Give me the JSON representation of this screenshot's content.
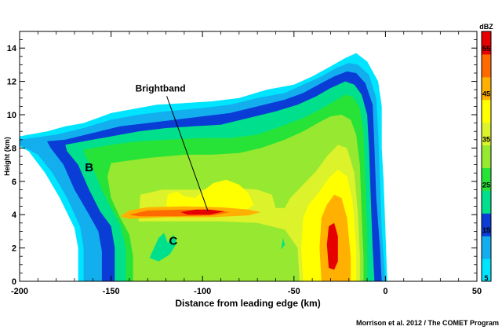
{
  "chart_data": {
    "type": "heatmap",
    "xlabel": "Distance from leading edge (km)",
    "ylabel": "Height (km)",
    "xlim": [
      -200,
      50
    ],
    "ylim": [
      0,
      15
    ],
    "xticks": [
      -200,
      -150,
      -100,
      -50,
      0,
      50
    ],
    "yticks": [
      0,
      2,
      4,
      6,
      8,
      10,
      12,
      14
    ],
    "colorbar": {
      "title": "dBZ",
      "range": [
        5,
        60
      ],
      "ticks": [
        5,
        15,
        25,
        35,
        45,
        55
      ],
      "levels": [
        {
          "from": 5,
          "to": 10,
          "color": "#00e5ff"
        },
        {
          "from": 10,
          "to": 15,
          "color": "#12aeee"
        },
        {
          "from": 15,
          "to": 20,
          "color": "#0a3cd6"
        },
        {
          "from": 20,
          "to": 25,
          "color": "#00e08c"
        },
        {
          "from": 25,
          "to": 30,
          "color": "#27e337"
        },
        {
          "from": 30,
          "to": 35,
          "color": "#96e830"
        },
        {
          "from": 35,
          "to": 40,
          "color": "#dcf22a"
        },
        {
          "from": 40,
          "to": 45,
          "color": "#ffff00"
        },
        {
          "from": 45,
          "to": 50,
          "color": "#ffb000"
        },
        {
          "from": 50,
          "to": 55,
          "color": "#ff6a00"
        },
        {
          "from": 55,
          "to": 60,
          "color": "#e60000"
        }
      ]
    },
    "annotations": [
      {
        "text": "Brightband",
        "x": -123,
        "y": 11.4,
        "arrow_to": [
          -97,
          4.2
        ]
      },
      {
        "text": "B",
        "x": -162,
        "y": 6.6
      },
      {
        "text": "C",
        "x": -116,
        "y": 2.2
      }
    ],
    "regions": [
      {
        "dbz_min": 5,
        "points": [
          [
            -200,
            8.7
          ],
          [
            -195,
            8.8
          ],
          [
            -185,
            9.0
          ],
          [
            -175,
            9.3
          ],
          [
            -165,
            9.5
          ],
          [
            -150,
            10.1
          ],
          [
            -140,
            10.3
          ],
          [
            -125,
            10.6
          ],
          [
            -110,
            10.7
          ],
          [
            -95,
            10.8
          ],
          [
            -80,
            11.0
          ],
          [
            -65,
            11.5
          ],
          [
            -50,
            11.8
          ],
          [
            -40,
            12.3
          ],
          [
            -30,
            12.9
          ],
          [
            -22,
            13.4
          ],
          [
            -16,
            13.7
          ],
          [
            -10,
            13.2
          ],
          [
            -4,
            12.0
          ],
          [
            -2,
            10.5
          ],
          [
            -2,
            8.0
          ],
          [
            -1,
            6.0
          ],
          [
            0,
            3.0
          ],
          [
            1,
            0
          ],
          [
            -168,
            0
          ],
          [
            -168,
            2
          ],
          [
            -170,
            3.2
          ],
          [
            -178,
            5.0
          ],
          [
            -186,
            6.5
          ],
          [
            -195,
            7.8
          ],
          [
            -200,
            8.1
          ]
        ]
      },
      {
        "dbz_min": 10,
        "points": [
          [
            -200,
            8.5
          ],
          [
            -190,
            8.65
          ],
          [
            -180,
            8.8
          ],
          [
            -165,
            9.2
          ],
          [
            -150,
            9.7
          ],
          [
            -135,
            10.0
          ],
          [
            -120,
            10.2
          ],
          [
            -100,
            10.4
          ],
          [
            -85,
            10.6
          ],
          [
            -70,
            11.0
          ],
          [
            -55,
            11.3
          ],
          [
            -45,
            11.8
          ],
          [
            -35,
            12.3
          ],
          [
            -27,
            12.8
          ],
          [
            -20,
            13.1
          ],
          [
            -15,
            13.0
          ],
          [
            -9,
            12.4
          ],
          [
            -5,
            11.0
          ],
          [
            -4,
            9.0
          ],
          [
            -3,
            6.0
          ],
          [
            -2,
            3.0
          ],
          [
            0,
            0
          ],
          [
            -165,
            0
          ],
          [
            -165,
            2.0
          ],
          [
            -167,
            3.3
          ],
          [
            -174,
            5.0
          ],
          [
            -182,
            6.5
          ],
          [
            -190,
            7.6
          ],
          [
            -200,
            8.2
          ]
        ]
      },
      {
        "dbz_min": 15,
        "points": [
          [
            -185,
            8.4
          ],
          [
            -175,
            8.5
          ],
          [
            -160,
            8.9
          ],
          [
            -145,
            9.3
          ],
          [
            -130,
            9.5
          ],
          [
            -115,
            9.7
          ],
          [
            -100,
            9.9
          ],
          [
            -85,
            10.1
          ],
          [
            -70,
            10.5
          ],
          [
            -55,
            10.9
          ],
          [
            -45,
            11.3
          ],
          [
            -35,
            11.9
          ],
          [
            -28,
            12.3
          ],
          [
            -21,
            12.6
          ],
          [
            -16,
            12.5
          ],
          [
            -11,
            11.9
          ],
          [
            -7,
            10.6
          ],
          [
            -6,
            8.0
          ],
          [
            -5,
            5.0
          ],
          [
            -3,
            2.0
          ],
          [
            -2,
            0
          ],
          [
            -155,
            0
          ],
          [
            -155,
            1.8
          ],
          [
            -157,
            3.0
          ],
          [
            -162,
            4.0
          ],
          [
            -170,
            5.5
          ],
          [
            -176,
            7.0
          ],
          [
            -183,
            8.0
          ]
        ]
      },
      {
        "dbz_min": 20,
        "points": [
          [
            -175,
            8.2
          ],
          [
            -165,
            8.4
          ],
          [
            -150,
            8.7
          ],
          [
            -135,
            9.0
          ],
          [
            -120,
            9.2
          ],
          [
            -105,
            9.3
          ],
          [
            -90,
            9.4
          ],
          [
            -75,
            9.8
          ],
          [
            -60,
            10.2
          ],
          [
            -48,
            10.6
          ],
          [
            -38,
            11.1
          ],
          [
            -30,
            11.6
          ],
          [
            -22,
            12.0
          ],
          [
            -17,
            11.8
          ],
          [
            -13,
            11.2
          ],
          [
            -10,
            10.0
          ],
          [
            -9,
            8.0
          ],
          [
            -8,
            5.0
          ],
          [
            -7,
            2.0
          ],
          [
            -6,
            0
          ],
          [
            -148,
            0
          ],
          [
            -148,
            2.0
          ],
          [
            -150,
            3.3
          ],
          [
            -156,
            4.2
          ],
          [
            -162,
            5.5
          ],
          [
            -168,
            7.0
          ],
          [
            -174,
            7.8
          ]
        ]
      },
      {
        "dbz_min": 25,
        "points": [
          [
            -165,
            7.9
          ],
          [
            -150,
            8.2
          ],
          [
            -135,
            8.4
          ],
          [
            -120,
            8.5
          ],
          [
            -100,
            8.6
          ],
          [
            -85,
            8.6
          ],
          [
            -70,
            8.8
          ],
          [
            -57,
            9.3
          ],
          [
            -45,
            9.8
          ],
          [
            -36,
            10.3
          ],
          [
            -28,
            10.8
          ],
          [
            -22,
            11.2
          ],
          [
            -18,
            11.1
          ],
          [
            -14,
            10.4
          ],
          [
            -12,
            9.0
          ],
          [
            -11,
            6.0
          ],
          [
            -10,
            3.0
          ],
          [
            -10,
            0
          ],
          [
            -142,
            0
          ],
          [
            -142,
            2.0
          ],
          [
            -145,
            3.4
          ],
          [
            -150,
            4.4
          ],
          [
            -155,
            5.5
          ],
          [
            -160,
            6.8
          ],
          [
            -164,
            7.5
          ]
        ]
      },
      {
        "dbz_min": 30,
        "points": [
          [
            -150,
            7.1
          ],
          [
            -130,
            7.4
          ],
          [
            -110,
            7.6
          ],
          [
            -95,
            7.6
          ],
          [
            -80,
            7.7
          ],
          [
            -68,
            8.0
          ],
          [
            -55,
            8.5
          ],
          [
            -45,
            9.0
          ],
          [
            -37,
            9.5
          ],
          [
            -30,
            9.9
          ],
          [
            -24,
            10.0
          ],
          [
            -19,
            9.7
          ],
          [
            -16,
            8.8
          ],
          [
            -14,
            7.0
          ],
          [
            -13,
            4.0
          ],
          [
            -12,
            1.5
          ],
          [
            -12,
            0
          ],
          [
            -138,
            0
          ],
          [
            -138,
            1.5
          ],
          [
            -140,
            2.8
          ],
          [
            -145,
            3.8
          ],
          [
            -150,
            5.0
          ],
          [
            -152,
            6.3
          ]
        ]
      },
      {
        "dbz_min": 35,
        "points": [
          [
            -134,
            5.2
          ],
          [
            -122,
            5.5
          ],
          [
            -108,
            5.5
          ],
          [
            -95,
            5.5
          ],
          [
            -82,
            5.6
          ],
          [
            -70,
            5.5
          ],
          [
            -62,
            5.2
          ],
          [
            -60,
            4.4
          ],
          [
            -55,
            4.4
          ],
          [
            -52,
            5.0
          ],
          [
            -45,
            5.8
          ],
          [
            -38,
            6.6
          ],
          [
            -32,
            7.5
          ],
          [
            -26,
            8.2
          ],
          [
            -21,
            8.0
          ],
          [
            -17,
            6.5
          ],
          [
            -15,
            4.0
          ],
          [
            -14,
            1.5
          ],
          [
            -14,
            0
          ],
          [
            -47,
            0
          ],
          [
            -48,
            2.0
          ],
          [
            -55,
            3.1
          ],
          [
            -70,
            3.5
          ],
          [
            -90,
            3.6
          ],
          [
            -110,
            3.6
          ],
          [
            -125,
            3.6
          ],
          [
            -135,
            3.6
          ]
        ]
      },
      {
        "dbz_min": 40,
        "points": [
          [
            -120,
            4.4
          ],
          [
            -119,
            5.2
          ],
          [
            -114,
            5.4
          ],
          [
            -110,
            5.1
          ],
          [
            -104,
            5.0
          ],
          [
            -100,
            5.4
          ],
          [
            -94,
            5.9
          ],
          [
            -87,
            6.1
          ],
          [
            -80,
            5.8
          ],
          [
            -75,
            5.3
          ],
          [
            -72,
            4.6
          ],
          [
            -77,
            4.2
          ],
          [
            -100,
            4.25
          ],
          [
            -120,
            4.2
          ]
        ]
      },
      {
        "dbz_min": 40,
        "points": [
          [
            -45,
            0
          ],
          [
            -46,
            2.0
          ],
          [
            -45,
            3.8
          ],
          [
            -42,
            4.6
          ],
          [
            -36,
            5.4
          ],
          [
            -31,
            6.2
          ],
          [
            -26,
            6.7
          ],
          [
            -21,
            6.3
          ],
          [
            -18,
            4.8
          ],
          [
            -16,
            2.0
          ],
          [
            -16,
            0
          ]
        ]
      },
      {
        "dbz_min": 45,
        "points": [
          [
            -145,
            3.9
          ],
          [
            -140,
            4.25
          ],
          [
            -130,
            4.45
          ],
          [
            -110,
            4.5
          ],
          [
            -90,
            4.45
          ],
          [
            -75,
            4.3
          ],
          [
            -68,
            4.15
          ],
          [
            -75,
            3.95
          ],
          [
            -95,
            3.85
          ],
          [
            -120,
            3.85
          ],
          [
            -140,
            3.75
          ]
        ]
      },
      {
        "dbz_min": 45,
        "points": [
          [
            -35,
            0
          ],
          [
            -36,
            2.0
          ],
          [
            -35,
            3.8
          ],
          [
            -32,
            4.6
          ],
          [
            -28,
            5.2
          ],
          [
            -24,
            5.0
          ],
          [
            -21,
            3.8
          ],
          [
            -19,
            1.5
          ],
          [
            -19,
            0
          ]
        ]
      },
      {
        "dbz_min": 50,
        "points": [
          [
            -140,
            4.0
          ],
          [
            -130,
            4.25
          ],
          [
            -110,
            4.3
          ],
          [
            -95,
            4.25
          ],
          [
            -85,
            4.15
          ],
          [
            -95,
            3.95
          ],
          [
            -115,
            3.9
          ],
          [
            -135,
            3.9
          ]
        ]
      },
      {
        "dbz_min": 55,
        "points": [
          [
            -112,
            4.15
          ],
          [
            -104,
            4.3
          ],
          [
            -96,
            4.3
          ],
          [
            -88,
            4.2
          ],
          [
            -96,
            4.0
          ],
          [
            -108,
            4.0
          ]
        ]
      },
      {
        "dbz_min": 55,
        "points": [
          [
            -31,
            0.8
          ],
          [
            -32,
            2.2
          ],
          [
            -31,
            3.3
          ],
          [
            -28,
            3.5
          ],
          [
            -26,
            2.7
          ],
          [
            -26,
            1.2
          ],
          [
            -28,
            0.7
          ]
        ]
      },
      {
        "dbz_min": 20,
        "points": [
          [
            -129,
            1.4
          ],
          [
            -124,
            2.6
          ],
          [
            -121,
            2.9
          ],
          [
            -119,
            2.3
          ],
          [
            -116,
            2.8
          ],
          [
            -114,
            2.3
          ],
          [
            -118,
            1.6
          ],
          [
            -124,
            1.2
          ]
        ]
      },
      {
        "dbz_min": 20,
        "points": [
          [
            -57,
            1.9
          ],
          [
            -56,
            2.6
          ],
          [
            -55,
            2.2
          ]
        ]
      }
    ]
  },
  "credit": "Morrison et al. 2012 / The COMET Program"
}
